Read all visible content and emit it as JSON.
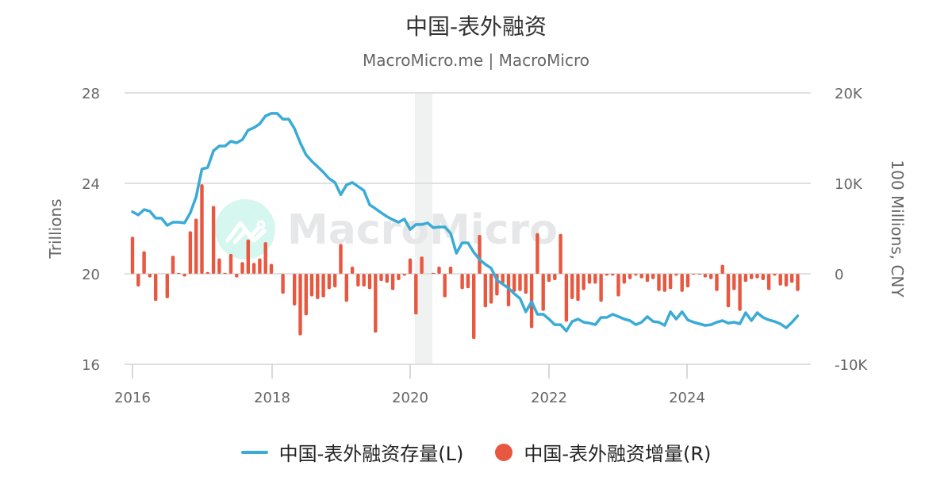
{
  "header": {
    "title": "中国-表外融资",
    "subtitle": "MacroMicro.me | MacroMicro"
  },
  "watermark": "MacroMicro",
  "colors": {
    "line": "#3aabd6",
    "bar": "#e8573f",
    "grid": "#e0e0e0",
    "recession_band": "#f0f1f1"
  },
  "axes": {
    "left": {
      "title": "Trillions",
      "ticks": [
        "28",
        "24",
        "20",
        "16"
      ]
    },
    "right": {
      "title": "100 Millions, CNY",
      "ticks": [
        "20K",
        "10K",
        "0",
        "-10K"
      ]
    },
    "x": {
      "ticks": [
        "2016",
        "2018",
        "2020",
        "2022",
        "2024"
      ]
    }
  },
  "legend": [
    {
      "label": "中国-表外融资存量(L)",
      "marker": "line"
    },
    {
      "label": "中国-表外融资增量(R)",
      "marker": "dot"
    }
  ],
  "chart_data": {
    "type": "bar+line",
    "title": "中国-表外融资",
    "subtitle": "MacroMicro.me | MacroMicro",
    "xlabel": "",
    "ylabel_left": "Trillions",
    "ylabel_right": "100 Millions, CNY",
    "ylim_left": [
      16,
      28
    ],
    "ylim_right": [
      -10000,
      20000
    ],
    "x_start": "2016-01",
    "x_ticks": [
      "2016",
      "2018",
      "2020",
      "2022",
      "2024"
    ],
    "frequency": "monthly",
    "recession_band": [
      "2020-02",
      "2020-04"
    ],
    "legend_position": "bottom",
    "grid": true,
    "series": [
      {
        "name": "中国-表外融资存量(L)",
        "type": "line",
        "axis": "left",
        "values": [
          22.74,
          22.6,
          22.84,
          22.77,
          22.46,
          22.46,
          22.14,
          22.28,
          22.28,
          22.25,
          22.7,
          23.4,
          24.63,
          24.7,
          25.44,
          25.65,
          25.65,
          25.86,
          25.79,
          25.93,
          26.35,
          26.46,
          26.63,
          26.98,
          27.09,
          27.09,
          26.84,
          26.84,
          26.42,
          25.79,
          25.26,
          24.98,
          24.74,
          24.49,
          24.21,
          24.04,
          23.5,
          23.93,
          24.04,
          23.86,
          23.68,
          23.05,
          22.88,
          22.7,
          22.53,
          22.39,
          22.28,
          22.42,
          21.96,
          22.18,
          22.18,
          22.25,
          22.04,
          22.07,
          22.07,
          21.79,
          20.91,
          21.37,
          21.37,
          20.95,
          20.63,
          20.42,
          20.25,
          19.72,
          19.54,
          19.37,
          19.12,
          18.91,
          18.32,
          18.77,
          18.21,
          18.21,
          18.0,
          17.75,
          17.75,
          17.47,
          17.89,
          18.0,
          17.86,
          17.82,
          17.75,
          18.07,
          18.07,
          18.21,
          18.11,
          18.0,
          17.93,
          17.75,
          17.86,
          18.11,
          17.89,
          17.86,
          17.72,
          18.32,
          18.0,
          18.32,
          17.96,
          17.86,
          17.79,
          17.72,
          17.75,
          17.86,
          17.93,
          17.82,
          17.86,
          17.79,
          18.28,
          17.93,
          18.28,
          18.07,
          17.96,
          17.89,
          17.79,
          17.61,
          17.86,
          18.14
        ]
      },
      {
        "name": "中国-表外融资增量(R)",
        "type": "bar",
        "axis": "right",
        "values": [
          4100,
          -1400,
          2500,
          -400,
          -3000,
          0,
          -2700,
          2000,
          100,
          -300,
          4700,
          6100,
          9900,
          200,
          7500,
          1700,
          100,
          2200,
          -400,
          1300,
          3800,
          1200,
          1700,
          3500,
          1100,
          0,
          -2200,
          0,
          -3500,
          -6800,
          -4600,
          -2500,
          -2800,
          -2600,
          -1700,
          -1500,
          3300,
          -3100,
          800,
          -1400,
          -1400,
          -1700,
          -6500,
          -800,
          -1000,
          -1800,
          -700,
          -200,
          1700,
          -4500,
          1900,
          0,
          100,
          800,
          -2600,
          800,
          0,
          -1700,
          -1600,
          -7200,
          4300,
          -3700,
          -3300,
          -2400,
          -1100,
          -3600,
          -2000,
          -1900,
          -2200,
          -6000,
          4500,
          -4100,
          -900,
          -700,
          4400,
          -5300,
          -2800,
          -3000,
          -1800,
          -1100,
          -1100,
          -3100,
          -200,
          -200,
          -2500,
          -1100,
          -600,
          -200,
          -500,
          -900,
          -600,
          -1900,
          -2000,
          -1700,
          -200,
          -2000,
          -1500,
          -100,
          -100,
          -400,
          -600,
          -1900,
          1000,
          -3700,
          -1800,
          -4100,
          -900,
          -600,
          -500,
          -700,
          -1800,
          -200,
          -1300,
          -1400,
          -1000,
          -1900
        ]
      }
    ]
  }
}
